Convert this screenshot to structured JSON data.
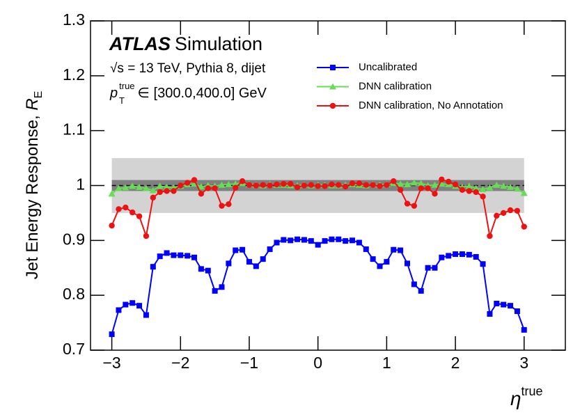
{
  "chart_data": {
    "type": "line",
    "annotations": {
      "experiment": "ATLAS",
      "label": "Simulation",
      "process": "√s = 13 TeV, Pythia 8, dijet",
      "selection": {
        "var": "p",
        "sub": "T",
        "sup": "true",
        "range": " ∈ [300.0,400.0] GeV"
      }
    },
    "y_label": {
      "text": "Jet Energy Response, ",
      "var": "R",
      "sub": "E"
    },
    "x_label": {
      "var": "η",
      "sup": "true"
    },
    "xlim": [
      -3.31,
      3.6
    ],
    "ylim": [
      0.7,
      1.3
    ],
    "xticks": [
      {
        "value": -3,
        "label": "−3"
      },
      {
        "value": -2,
        "label": "−2"
      },
      {
        "value": -1,
        "label": "−1"
      },
      0,
      1,
      2,
      3
    ],
    "yticks": [
      0.7,
      0.8,
      0.9,
      1,
      1.1,
      1.2,
      1.3
    ],
    "bands": [
      {
        "lo": 0.95,
        "hi": 1.05,
        "xrange": [
          -3,
          3
        ],
        "color": "#d3d3d3"
      },
      {
        "lo": 0.99,
        "hi": 1.01,
        "xrange": [
          -3,
          3
        ],
        "color": "#808080"
      }
    ],
    "reference_line": 1,
    "legend": "upper right",
    "x": [
      -3,
      -2.9,
      -2.8,
      -2.7,
      -2.6,
      -2.5,
      -2.4,
      -2.3,
      -2.2,
      -2.1,
      -2,
      -1.9,
      -1.8,
      -1.7,
      -1.6,
      -1.5,
      -1.4,
      -1.3,
      -1.2,
      -1.1,
      -1,
      -0.9,
      -0.8,
      -0.7,
      -0.6,
      -0.5,
      -0.4,
      -0.3,
      -0.2,
      -0.1,
      0,
      0.1,
      0.2,
      0.3,
      0.4,
      0.5,
      0.6,
      0.7,
      0.8,
      0.9,
      1,
      1.1,
      1.2,
      1.3,
      1.4,
      1.5,
      1.6,
      1.7,
      1.8,
      1.9,
      2,
      2.1,
      2.2,
      2.3,
      2.4,
      2.5,
      2.6,
      2.7,
      2.8,
      2.9,
      3
    ],
    "series": [
      {
        "name": "Uncalibrated",
        "color": "#0000ff",
        "marker": "square",
        "values": [
          0.729,
          0.773,
          0.783,
          0.786,
          0.781,
          0.764,
          0.852,
          0.871,
          0.877,
          0.873,
          0.873,
          0.872,
          0.869,
          0.848,
          0.845,
          0.808,
          0.815,
          0.858,
          0.882,
          0.883,
          0.861,
          0.853,
          0.866,
          0.884,
          0.896,
          0.901,
          0.9,
          0.902,
          0.901,
          0.899,
          0.892,
          0.899,
          0.902,
          0.902,
          0.899,
          0.9,
          0.896,
          0.884,
          0.866,
          0.853,
          0.861,
          0.883,
          0.882,
          0.858,
          0.82,
          0.808,
          0.85,
          0.85,
          0.869,
          0.872,
          0.875,
          0.875,
          0.874,
          0.87,
          0.857,
          0.766,
          0.785,
          0.783,
          0.781,
          0.771,
          0.737
        ]
      },
      {
        "name": "DNN calibration",
        "color": "#66dd55",
        "marker": "triangle",
        "values": [
          0.985,
          0.995,
          0.996,
          0.999,
          0.997,
          0.995,
          0.991,
          0.999,
          0.997,
          0.996,
          0.999,
          1.002,
          1.003,
          0.998,
          1.0,
          0.999,
          1.001,
          1.002,
          1.003,
          1.004,
          1.002,
          1.001,
          1.0,
          1.002,
          1.001,
          1.001,
          1.0,
          1.0,
          1.001,
          1.0,
          1.001,
          1.001,
          1.0,
          1.0,
          1.001,
          1.002,
          1.001,
          1.0,
          1.002,
          1.001,
          1.002,
          1.004,
          1.003,
          1.002,
          1.005,
          1.004,
          1.0,
          1.001,
          1.003,
          1.002,
          0.999,
          0.997,
          0.999,
          0.995,
          0.993,
          0.996,
          1.001,
          0.999,
          0.997,
          0.994,
          0.986
        ]
      },
      {
        "name": "DNN calibration, No Annotation",
        "color": "#ee1111",
        "marker": "circle",
        "values": [
          0.927,
          0.957,
          0.96,
          0.951,
          0.944,
          0.908,
          0.978,
          0.988,
          0.99,
          0.99,
          1.0,
          1.005,
          1.01,
          0.985,
          0.995,
          0.995,
          0.963,
          0.966,
          0.996,
          1.008,
          1.001,
          1.0,
          1.001,
          1.0,
          1.002,
          1.003,
          1.003,
          0.997,
          1.0,
          1.001,
          0.999,
          0.999,
          1.002,
          1.001,
          0.998,
          1.004,
          1.004,
          1.001,
          1.001,
          0.999,
          1.001,
          1.008,
          0.992,
          0.967,
          0.963,
          0.995,
          0.995,
          0.985,
          1.011,
          1.007,
          1.002,
          0.992,
          0.99,
          0.988,
          0.98,
          0.908,
          0.945,
          0.95,
          0.955,
          0.954,
          0.925
        ]
      }
    ]
  }
}
